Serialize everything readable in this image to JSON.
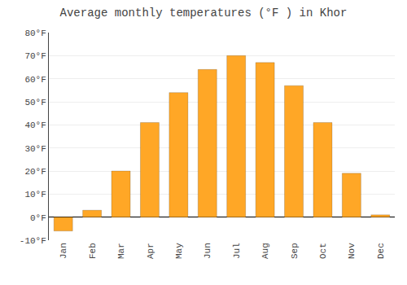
{
  "chart_data": {
    "type": "bar",
    "title": "Average monthly temperatures (°F ) in Khor",
    "categories": [
      "Jan",
      "Feb",
      "Mar",
      "Apr",
      "May",
      "Jun",
      "Jul",
      "Aug",
      "Sep",
      "Oct",
      "Nov",
      "Dec"
    ],
    "values": [
      -6,
      3,
      20,
      41,
      54,
      64,
      70,
      67,
      57,
      41,
      19,
      1
    ],
    "color": "#FFA726",
    "ylim": [
      -10,
      80
    ],
    "yticks": [
      {
        "value": -10,
        "label": "-10°F"
      },
      {
        "value": 0,
        "label": "0°F"
      },
      {
        "value": 10,
        "label": "10°F"
      },
      {
        "value": 20,
        "label": "20°F"
      },
      {
        "value": 30,
        "label": "30°F"
      },
      {
        "value": 40,
        "label": "40°F"
      },
      {
        "value": 50,
        "label": "50°F"
      },
      {
        "value": 60,
        "label": "60°F"
      },
      {
        "value": 70,
        "label": "70°F"
      },
      {
        "value": 80,
        "label": "80°F"
      }
    ],
    "grid": true
  }
}
